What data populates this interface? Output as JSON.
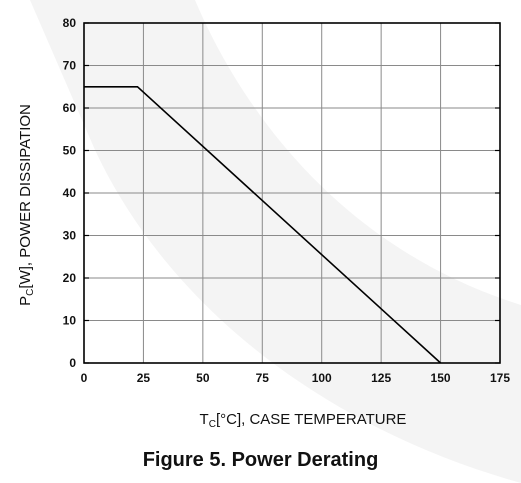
{
  "caption": "Figure 5. Power Derating",
  "chart_data": {
    "type": "line",
    "title": "Figure 5. Power Derating",
    "xlabel": {
      "prefix": "T",
      "sub": "C",
      "suffix": "[°C], CASE TEMPERATURE"
    },
    "ylabel": {
      "prefix": "P",
      "sub": "C",
      "suffix": "[W], POWER DISSIPATION"
    },
    "xlim": [
      0,
      175
    ],
    "ylim": [
      0,
      80
    ],
    "xticks": [
      0,
      25,
      50,
      75,
      100,
      125,
      150,
      175
    ],
    "yticks": [
      0,
      10,
      20,
      30,
      40,
      50,
      60,
      70,
      80
    ],
    "grid": true,
    "series": [
      {
        "x": [
          0,
          22.5,
          150
        ],
        "y": [
          65,
          65,
          0
        ],
        "color": "#000000"
      }
    ]
  }
}
